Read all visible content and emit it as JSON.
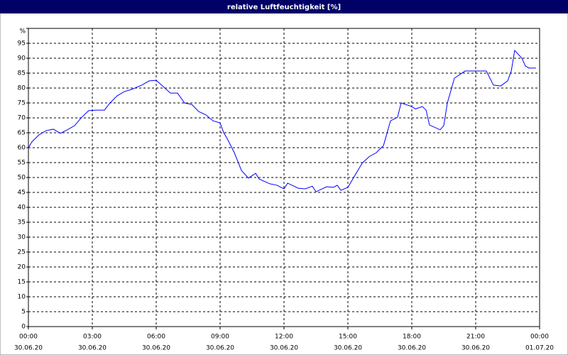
{
  "chart_data": {
    "type": "line",
    "title": "relative Luftfeuchtigkeit [%]",
    "series": [
      {
        "color": "#0000ff",
        "x": [
          0,
          0.17,
          0.5,
          0.83,
          1.17,
          1.5,
          1.83,
          2.17,
          2.5,
          2.83,
          3.17,
          3.57,
          3.83,
          4.17,
          4.5,
          4.83,
          5.33,
          5.67,
          6,
          6.33,
          6.67,
          7,
          7.33,
          7.67,
          8,
          8.33,
          8.67,
          9,
          9.17,
          9.33,
          9.67,
          10,
          10.33,
          10.67,
          10.83,
          11.33,
          11.67,
          12,
          12.17,
          12.67,
          13,
          13.33,
          13.5,
          14,
          14.33,
          14.5,
          14.67,
          15,
          15.33,
          15.67,
          16,
          16.33,
          16.67,
          17,
          17.33,
          17.5,
          18,
          18.17,
          18.5,
          18.67,
          18.83,
          19.33,
          19.5,
          19.67,
          20,
          20.5,
          21.5,
          21.83,
          22.17,
          22.5,
          22.67,
          22.83,
          23.17,
          23.33,
          23.5,
          23.83
        ],
        "values": [
          60,
          62,
          64.3,
          65.7,
          66.2,
          64.8,
          66,
          67.4,
          70.2,
          72.4,
          72.6,
          72.6,
          75,
          77.4,
          78.8,
          79.5,
          81,
          82.4,
          82.6,
          80.5,
          78.3,
          78.3,
          75,
          74.5,
          72.1,
          71,
          69,
          68.3,
          65,
          63.1,
          58.3,
          52.4,
          49.8,
          51.4,
          49.5,
          47.9,
          47.4,
          46.2,
          48.1,
          46.4,
          46.2,
          47.1,
          45.2,
          46.9,
          46.7,
          47.4,
          45.7,
          46.7,
          50.7,
          54.8,
          57,
          58.3,
          60.7,
          69,
          70.2,
          75,
          73.8,
          73,
          73.8,
          72.6,
          67.6,
          66,
          67.4,
          75,
          83.3,
          85.7,
          85.7,
          81,
          80.7,
          82.4,
          85.7,
          92.6,
          90,
          87.4,
          86.7,
          86.7
        ]
      }
    ],
    "xlim": [
      0,
      24
    ],
    "xticks": [
      {
        "value": 0,
        "label": "00:00",
        "date": "30.06.20"
      },
      {
        "value": 3,
        "label": "03:00",
        "date": "30.06.20"
      },
      {
        "value": 6,
        "label": "06:00",
        "date": "30.06.20"
      },
      {
        "value": 9,
        "label": "09:00",
        "date": "30.06.20"
      },
      {
        "value": 12,
        "label": "12:00",
        "date": "30.06.20"
      },
      {
        "value": 15,
        "label": "15:00",
        "date": "30.06.20"
      },
      {
        "value": 18,
        "label": "18:00",
        "date": "30.06.20"
      },
      {
        "value": 21,
        "label": "21:00",
        "date": "30.06.20"
      },
      {
        "value": 24,
        "label": "00:00",
        "date": "01.07.20"
      }
    ],
    "ylim": [
      0,
      100
    ],
    "yticks": [
      0,
      5,
      10,
      15,
      20,
      25,
      30,
      35,
      40,
      45,
      50,
      55,
      60,
      65,
      70,
      75,
      80,
      85,
      90,
      95,
      {
        "value": 100,
        "label": "%"
      }
    ],
    "grid": true
  }
}
